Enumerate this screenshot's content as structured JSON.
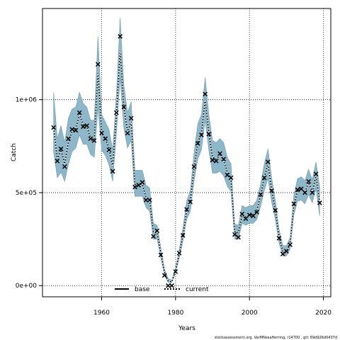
{
  "chart_data": {
    "type": "line",
    "xlabel": "Years",
    "ylabel": "Catch",
    "xlim": [
      1944,
      2022
    ],
    "ylim": [
      -60000,
      1490000
    ],
    "x_ticks": [
      1960,
      1980,
      2000,
      2020
    ],
    "x_tick_labels": [
      "1960",
      "1980",
      "2000",
      "2020"
    ],
    "y_ticks": [
      0,
      500000,
      1000000
    ],
    "y_tick_labels": [
      "0e+00",
      "5e+05",
      "1e+06"
    ],
    "grid": true,
    "legend_position": "bottom-center",
    "colors": {
      "band": "#8fb7ca",
      "band_edge": "#6f9cb3",
      "line": "#000000",
      "points": "#000000"
    },
    "footnote": "stockassessment.org,  VarMNseaHerring,  r14700 ,  git:  69d926d0437d",
    "years": [
      1947,
      1948,
      1949,
      1950,
      1951,
      1952,
      1953,
      1954,
      1955,
      1956,
      1957,
      1958,
      1959,
      1960,
      1961,
      1962,
      1963,
      1964,
      1965,
      1966,
      1967,
      1968,
      1969,
      1970,
      1971,
      1972,
      1973,
      1974,
      1975,
      1976,
      1977,
      1978,
      1979,
      1980,
      1981,
      1982,
      1983,
      1984,
      1985,
      1986,
      1987,
      1988,
      1989,
      1990,
      1991,
      1992,
      1993,
      1994,
      1995,
      1996,
      1997,
      1998,
      1999,
      2000,
      2001,
      2002,
      2003,
      2004,
      2005,
      2006,
      2007,
      2008,
      2009,
      2010,
      2011,
      2012,
      2013,
      2014,
      2015,
      2016,
      2017,
      2018,
      2019
    ],
    "observed": [
      850000,
      670000,
      735000,
      640000,
      790000,
      840000,
      835000,
      930000,
      855000,
      860000,
      790000,
      780000,
      1190000,
      820000,
      790000,
      730000,
      615000,
      930000,
      1340000,
      960000,
      820000,
      900000,
      530000,
      540000,
      555000,
      460000,
      460000,
      265000,
      295000,
      165000,
      55000,
      0,
      0,
      75000,
      175000,
      270000,
      410000,
      450000,
      640000,
      765000,
      810000,
      1030000,
      815000,
      675000,
      670000,
      710000,
      680000,
      595000,
      580000,
      275000,
      260000,
      385000,
      360000,
      380000,
      375000,
      395000,
      490000,
      580000,
      665000,
      510000,
      405000,
      255000,
      170000,
      185000,
      220000,
      440000,
      515000,
      520000,
      500000,
      560000,
      500000,
      600000,
      445000
    ],
    "series": [
      {
        "name": "base",
        "values": [
          850000,
          680000,
          730000,
          655000,
          770000,
          830000,
          845000,
          920000,
          865000,
          855000,
          795000,
          790000,
          1150000,
          820000,
          790000,
          740000,
          640000,
          920000,
          1270000,
          960000,
          830000,
          880000,
          545000,
          545000,
          545000,
          475000,
          460000,
          290000,
          285000,
          175000,
          70000,
          25000,
          20000,
          80000,
          170000,
          270000,
          400000,
          455000,
          630000,
          770000,
          820000,
          1000000,
          820000,
          690000,
          680000,
          700000,
          675000,
          610000,
          575000,
          290000,
          285000,
          380000,
          370000,
          380000,
          380000,
          405000,
          485000,
          580000,
          655000,
          515000,
          405000,
          265000,
          185000,
          185000,
          225000,
          430000,
          510000,
          520000,
          500000,
          555000,
          505000,
          590000,
          450000
        ]
      },
      {
        "name": "current",
        "values": [
          850000,
          680000,
          730000,
          655000,
          770000,
          830000,
          845000,
          920000,
          865000,
          855000,
          795000,
          790000,
          1150000,
          820000,
          790000,
          740000,
          640000,
          920000,
          1270000,
          960000,
          830000,
          880000,
          545000,
          545000,
          545000,
          475000,
          460000,
          290000,
          285000,
          175000,
          70000,
          25000,
          20000,
          80000,
          170000,
          270000,
          400000,
          455000,
          630000,
          770000,
          820000,
          1000000,
          820000,
          690000,
          680000,
          700000,
          675000,
          610000,
          575000,
          290000,
          285000,
          380000,
          370000,
          380000,
          380000,
          405000,
          485000,
          580000,
          655000,
          515000,
          405000,
          265000,
          185000,
          185000,
          225000,
          430000,
          510000,
          520000,
          500000,
          555000,
          505000,
          590000,
          450000
        ],
        "lower": [
          720000,
          580000,
          610000,
          560000,
          650000,
          720000,
          740000,
          810000,
          760000,
          760000,
          705000,
          690000,
          960000,
          730000,
          700000,
          650000,
          560000,
          820000,
          1120000,
          850000,
          740000,
          780000,
          480000,
          480000,
          480000,
          420000,
          400000,
          250000,
          250000,
          150000,
          55000,
          18000,
          15000,
          68000,
          148000,
          240000,
          355000,
          400000,
          560000,
          680000,
          730000,
          890000,
          730000,
          605000,
          605000,
          615000,
          590000,
          535000,
          505000,
          250000,
          250000,
          335000,
          325000,
          335000,
          335000,
          355000,
          425000,
          510000,
          575000,
          450000,
          355000,
          230000,
          160000,
          160000,
          195000,
          380000,
          455000,
          460000,
          440000,
          490000,
          445000,
          520000,
          375000
        ],
        "upper": [
          1040000,
          790000,
          860000,
          770000,
          900000,
          950000,
          960000,
          1040000,
          980000,
          960000,
          890000,
          890000,
          1340000,
          920000,
          880000,
          840000,
          730000,
          1030000,
          1440000,
          1080000,
          930000,
          990000,
          620000,
          620000,
          620000,
          540000,
          525000,
          335000,
          325000,
          205000,
          90000,
          38000,
          30000,
          95000,
          195000,
          310000,
          455000,
          510000,
          710000,
          870000,
          920000,
          1120000,
          920000,
          780000,
          770000,
          790000,
          770000,
          690000,
          655000,
          330000,
          325000,
          430000,
          420000,
          430000,
          430000,
          460000,
          545000,
          655000,
          735000,
          580000,
          460000,
          305000,
          215000,
          215000,
          260000,
          485000,
          575000,
          585000,
          565000,
          625000,
          570000,
          665000,
          530000
        ]
      }
    ]
  }
}
